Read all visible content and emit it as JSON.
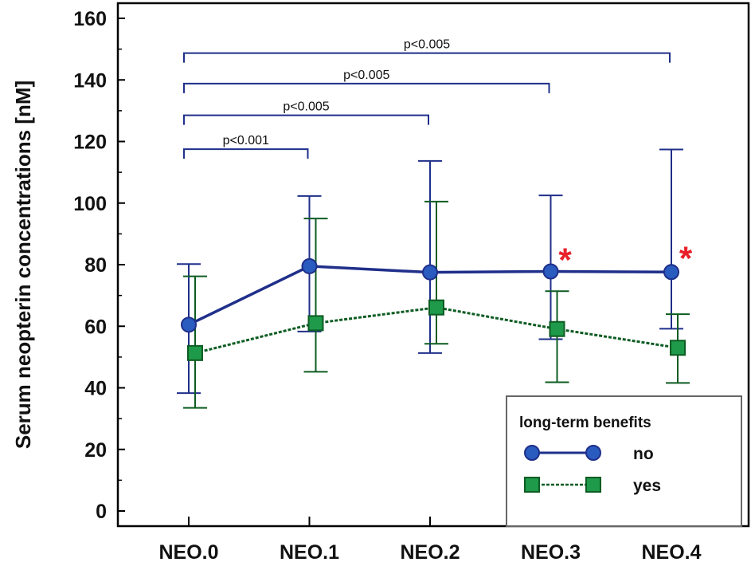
{
  "chart_data": {
    "type": "line",
    "xlabel": "",
    "ylabel": "Serum neopterin concentrations [nM]",
    "categories": [
      "NEO.0",
      "NEO.1",
      "NEO.2",
      "NEO.3",
      "NEO.4"
    ],
    "ylim": [
      0,
      160
    ],
    "yticks": [
      0,
      20,
      40,
      60,
      80,
      100,
      120,
      140,
      160
    ],
    "grid": false,
    "series": [
      {
        "name": "no",
        "color": "#1f2f8a",
        "marker_color": "#2a5bbf",
        "marker": "circle",
        "line_style": "solid",
        "values": [
          60.5,
          79.5,
          77.5,
          77.8,
          77.6
        ],
        "err_low": [
          38.3,
          58.3,
          51.3,
          55.8,
          59.2
        ],
        "err_high": [
          80.2,
          102.3,
          113.7,
          102.5,
          117.4
        ]
      },
      {
        "name": "yes",
        "color": "#0d5c22",
        "marker_color": "#1e9a4a",
        "marker": "square",
        "line_style": "dashed",
        "values": [
          51.3,
          61.0,
          66.1,
          59.1,
          53.0
        ],
        "err_low": [
          33.5,
          45.2,
          54.3,
          41.8,
          41.6
        ],
        "err_high": [
          76.2,
          95.0,
          100.5,
          71.4,
          63.9
        ]
      }
    ],
    "annotations": [
      {
        "from": "NEO.0",
        "to": "NEO.1",
        "level": 117.5,
        "text": "p<0.001"
      },
      {
        "from": "NEO.0",
        "to": "NEO.2",
        "level": 128.5,
        "text": "p<0.005"
      },
      {
        "from": "NEO.0",
        "to": "NEO.3",
        "level": 138.8,
        "text": "p<0.005"
      },
      {
        "from": "NEO.0",
        "to": "NEO.4",
        "level": 148.7,
        "text": "p<0.005"
      }
    ],
    "markers": [
      {
        "category": "NEO.3",
        "value": 82.5,
        "text": "*"
      },
      {
        "category": "NEO.4",
        "value": 83.0,
        "text": "*"
      }
    ],
    "legend": {
      "title": "long-term benefits",
      "placement": "bottom-right"
    }
  }
}
